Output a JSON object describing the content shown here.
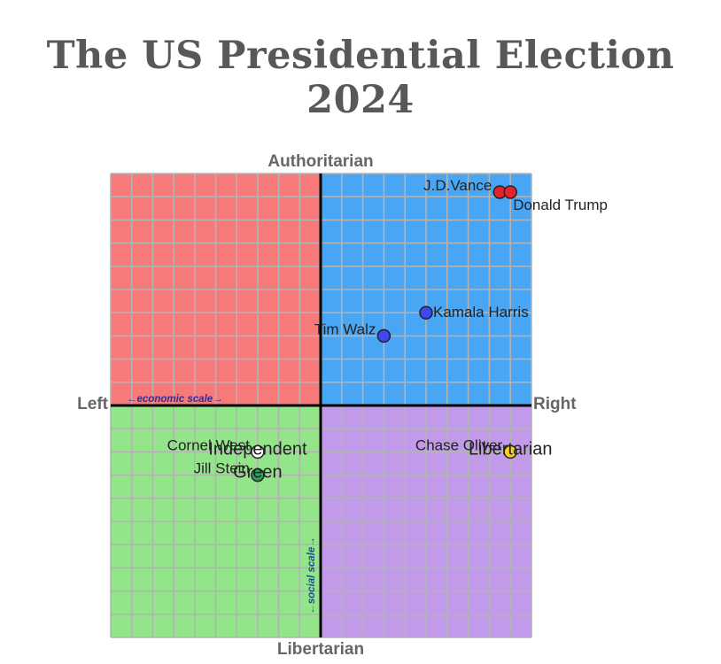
{
  "title": "The US Presidential Election 2024",
  "chart_data": {
    "type": "scatter",
    "title": "The US Presidential Election 2024",
    "subtype": "political-compass",
    "x_axis": {
      "min": -10,
      "max": 10,
      "left_label": "Left",
      "right_label": "Right",
      "scale_label": "←economic scale→"
    },
    "y_axis": {
      "min": -10,
      "max": 10,
      "top_label": "Authoritarian",
      "bottom_label": "Libertarian",
      "scale_label": "←social scale→"
    },
    "grid": true,
    "grid_step": 1,
    "quadrants": [
      {
        "name": "authoritarian-left",
        "color": "#f77a7a"
      },
      {
        "name": "authoritarian-right",
        "color": "#49a6f5"
      },
      {
        "name": "libertarian-left",
        "color": "#93e58a"
      },
      {
        "name": "libertarian-right",
        "color": "#c19aea"
      }
    ],
    "points": [
      {
        "name": "J.D.Vance",
        "x": 8.5,
        "y": 9.2,
        "color": "#e5232b",
        "label_side": "left",
        "party": ""
      },
      {
        "name": "Donald Trump",
        "x": 9.0,
        "y": 9.2,
        "color": "#e5232b",
        "label_side": "below-right",
        "party": ""
      },
      {
        "name": "Kamala Harris",
        "x": 5.0,
        "y": 4.0,
        "color": "#3f47ee",
        "label_side": "right",
        "party": ""
      },
      {
        "name": "Tim Walz",
        "x": 3.0,
        "y": 3.0,
        "color": "#3f47ee",
        "label_side": "left",
        "party": ""
      },
      {
        "name": "Cornel West",
        "x": -3.0,
        "y": -2.0,
        "color": "#ffffff",
        "label_side": "left",
        "party": "Independent"
      },
      {
        "name": "Jill Stein",
        "x": -3.0,
        "y": -3.0,
        "color": "#26a25a",
        "label_side": "left",
        "party": "Green"
      },
      {
        "name": "Chase Oliver",
        "x": 9.0,
        "y": -2.0,
        "color": "#f7d01f",
        "label_side": "left",
        "party": "Libertarian"
      }
    ]
  }
}
